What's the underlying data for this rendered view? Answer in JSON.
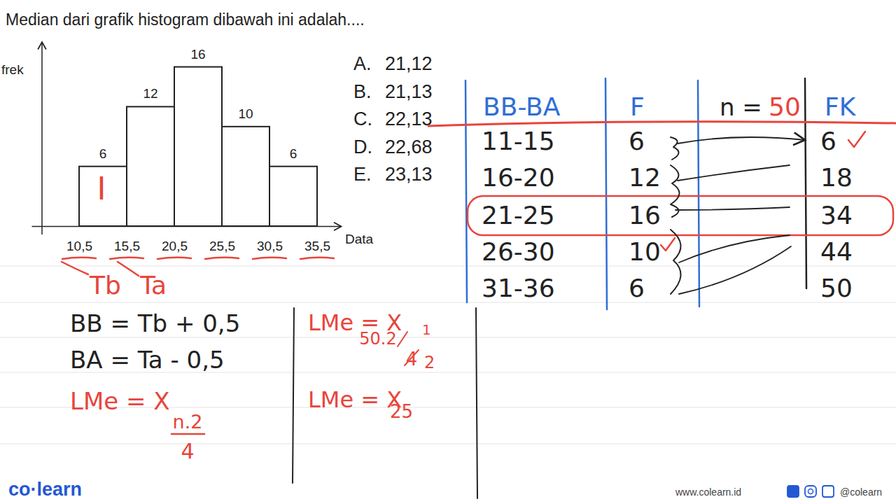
{
  "question": "Median dari grafik histogram dibawah ini adalah....",
  "chart_data": {
    "type": "histogram",
    "bins": [
      10.5,
      15.5,
      20.5,
      25.5,
      30.5,
      35.5
    ],
    "values": [
      6,
      12,
      16,
      10,
      6
    ],
    "color": "#ffffff",
    "x_label": "Data",
    "y_label": "frek",
    "xlim": [
      5.5,
      38
    ],
    "ylim": [
      0,
      18.5
    ],
    "xticks": [
      {
        "value": 10.5,
        "label": "10,5"
      },
      {
        "value": 15.5,
        "label": "15,5"
      },
      {
        "value": 20.5,
        "label": "20,5"
      },
      {
        "value": 25.5,
        "label": "25,5"
      },
      {
        "value": 30.5,
        "label": "30,5"
      },
      {
        "value": 35.5,
        "label": "35,5"
      }
    ],
    "data_labels": true,
    "tick_labels": "x",
    "annotations": [
      "I",
      "Tb",
      "Ta"
    ]
  },
  "options": [
    {
      "letter": "A.",
      "text": "21,12"
    },
    {
      "letter": "B.",
      "text": "21,13"
    },
    {
      "letter": "C.",
      "text": "22,13"
    },
    {
      "letter": "D.",
      "text": "22,68"
    },
    {
      "letter": "E.",
      "text": "23,13"
    }
  ],
  "table": {
    "header": [
      "BB-BA",
      "F",
      "FK"
    ],
    "n_label": "n =",
    "n_value": "50",
    "rows": [
      [
        "11-15",
        "6",
        "6"
      ],
      [
        "16-20",
        "12",
        "18"
      ],
      [
        "21-25",
        "16",
        "34"
      ],
      [
        "26-30",
        "10",
        "44"
      ],
      [
        "31-36",
        "6",
        "50"
      ]
    ]
  },
  "notes": [
    "BB = Tb + 0,5",
    "BA = Ta - 0,5"
  ],
  "median_formula": {
    "lhs": "LMe = X",
    "numerator": "n.2",
    "denominator": "4"
  },
  "work": {
    "lhs": "LMe = X",
    "numerator": "50.2",
    "numerator_fix": "1",
    "denominator": "4",
    "denominator_fix": "2",
    "result_lhs": "LMe = X",
    "result_sub": "25"
  },
  "footer": {
    "logo": "co·learn",
    "url": "www.colearn.id",
    "handle": "@colearn"
  }
}
